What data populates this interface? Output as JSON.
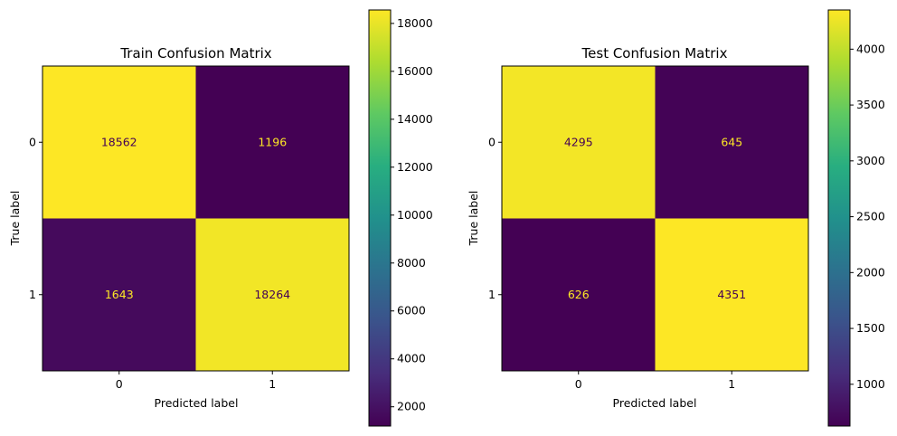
{
  "chart_data": [
    {
      "type": "heatmap",
      "title": "Train Confusion Matrix",
      "xlabel": "Predicted label",
      "ylabel": "True label",
      "x_categories": [
        "0",
        "1"
      ],
      "y_categories": [
        "0",
        "1"
      ],
      "values": [
        [
          18562,
          1196
        ],
        [
          1643,
          18264
        ]
      ],
      "colormap": "viridis",
      "vmin": 1196,
      "vmax": 18562,
      "colorbar_ticks": [
        2000,
        4000,
        6000,
        8000,
        10000,
        12000,
        14000,
        16000,
        18000
      ],
      "grid": false,
      "text_color_on_dark": "#fde725",
      "text_color_on_light": "#440154"
    },
    {
      "type": "heatmap",
      "title": "Test Confusion Matrix",
      "xlabel": "Predicted label",
      "ylabel": "True label",
      "x_categories": [
        "0",
        "1"
      ],
      "y_categories": [
        "0",
        "1"
      ],
      "values": [
        [
          4295,
          645
        ],
        [
          626,
          4351
        ]
      ],
      "colormap": "viridis",
      "vmin": 626,
      "vmax": 4351,
      "colorbar_ticks": [
        1000,
        1500,
        2000,
        2500,
        3000,
        3500,
        4000
      ],
      "grid": false,
      "text_color_on_dark": "#fde725",
      "text_color_on_light": "#440154"
    }
  ]
}
